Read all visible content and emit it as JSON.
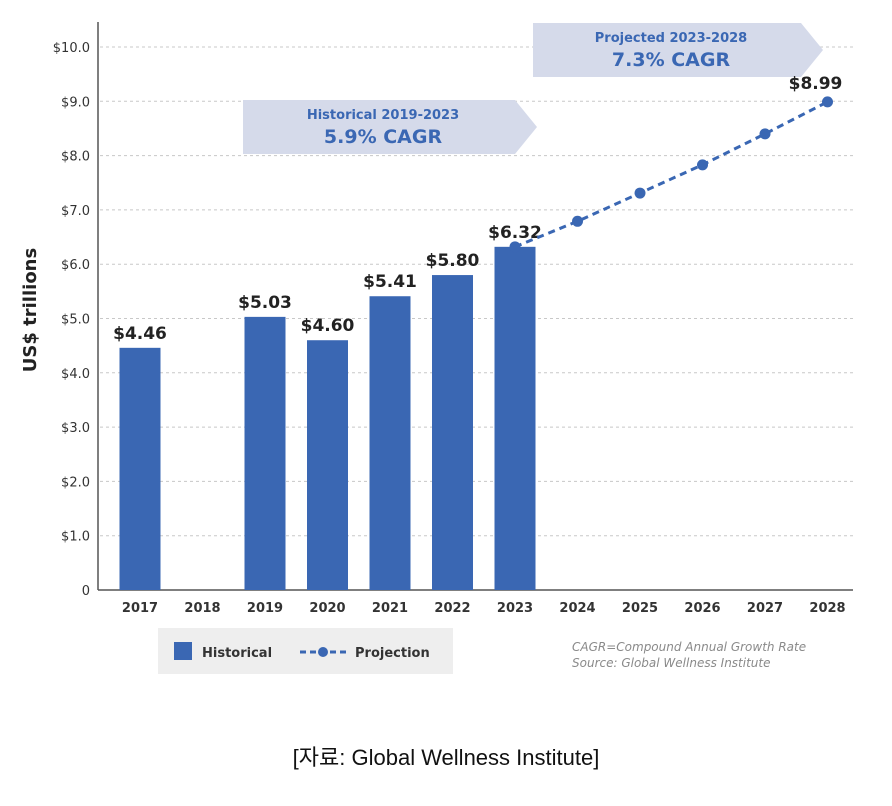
{
  "chart_data": {
    "type": "bar",
    "ylabel": "US$ trillions",
    "ylim": [
      0,
      10
    ],
    "y_ticks": [
      0,
      1,
      2,
      3,
      4,
      5,
      6,
      7,
      8,
      9,
      10
    ],
    "y_tick_labels": [
      "0",
      "$1.0",
      "$2.0",
      "$3.0",
      "$4.0",
      "$5.0",
      "$6.0",
      "$7.0",
      "$8.0",
      "$9.0",
      "$10.0"
    ],
    "categories": [
      "2017",
      "2018",
      "2019",
      "2020",
      "2021",
      "2022",
      "2023",
      "2024",
      "2025",
      "2026",
      "2027",
      "2028"
    ],
    "grid": "horizontal dashed",
    "series": [
      {
        "name": "Historical",
        "kind": "bar",
        "color": "#3a67b3",
        "values": [
          4.46,
          null,
          5.03,
          4.6,
          5.41,
          5.8,
          6.32,
          null,
          null,
          null,
          null,
          null
        ],
        "labels": [
          "$4.46",
          "",
          "$5.03",
          "$4.60",
          "$5.41",
          "$5.80",
          "$6.32",
          "",
          "",
          "",
          "",
          ""
        ]
      },
      {
        "name": "Projection",
        "kind": "dashed-line",
        "color": "#3a67b3",
        "values": [
          null,
          null,
          null,
          null,
          null,
          null,
          6.32,
          6.79,
          7.31,
          7.83,
          8.4,
          8.99
        ],
        "labels": [
          "",
          "",
          "",
          "",
          "",
          "",
          "",
          "",
          "",
          "",
          "",
          "$8.99"
        ]
      }
    ],
    "annotations": [
      {
        "title": "Historical 2019-2023",
        "value": "5.9% CAGR"
      },
      {
        "title": "Projected 2023-2028",
        "value": "7.3% CAGR"
      }
    ],
    "legend": {
      "position": "bottom-left",
      "items": [
        "Historical",
        "Projection"
      ]
    },
    "notes": [
      "CAGR=Compound Annual Growth Rate",
      "Source: Global Wellness Institute"
    ],
    "colors": {
      "bar": "#3a67b3",
      "banner": "#d5daea",
      "banner_text": "#3a67b3",
      "grid": "#c8c8c8"
    }
  },
  "caption": "[자료: Global Wellness Institute]"
}
